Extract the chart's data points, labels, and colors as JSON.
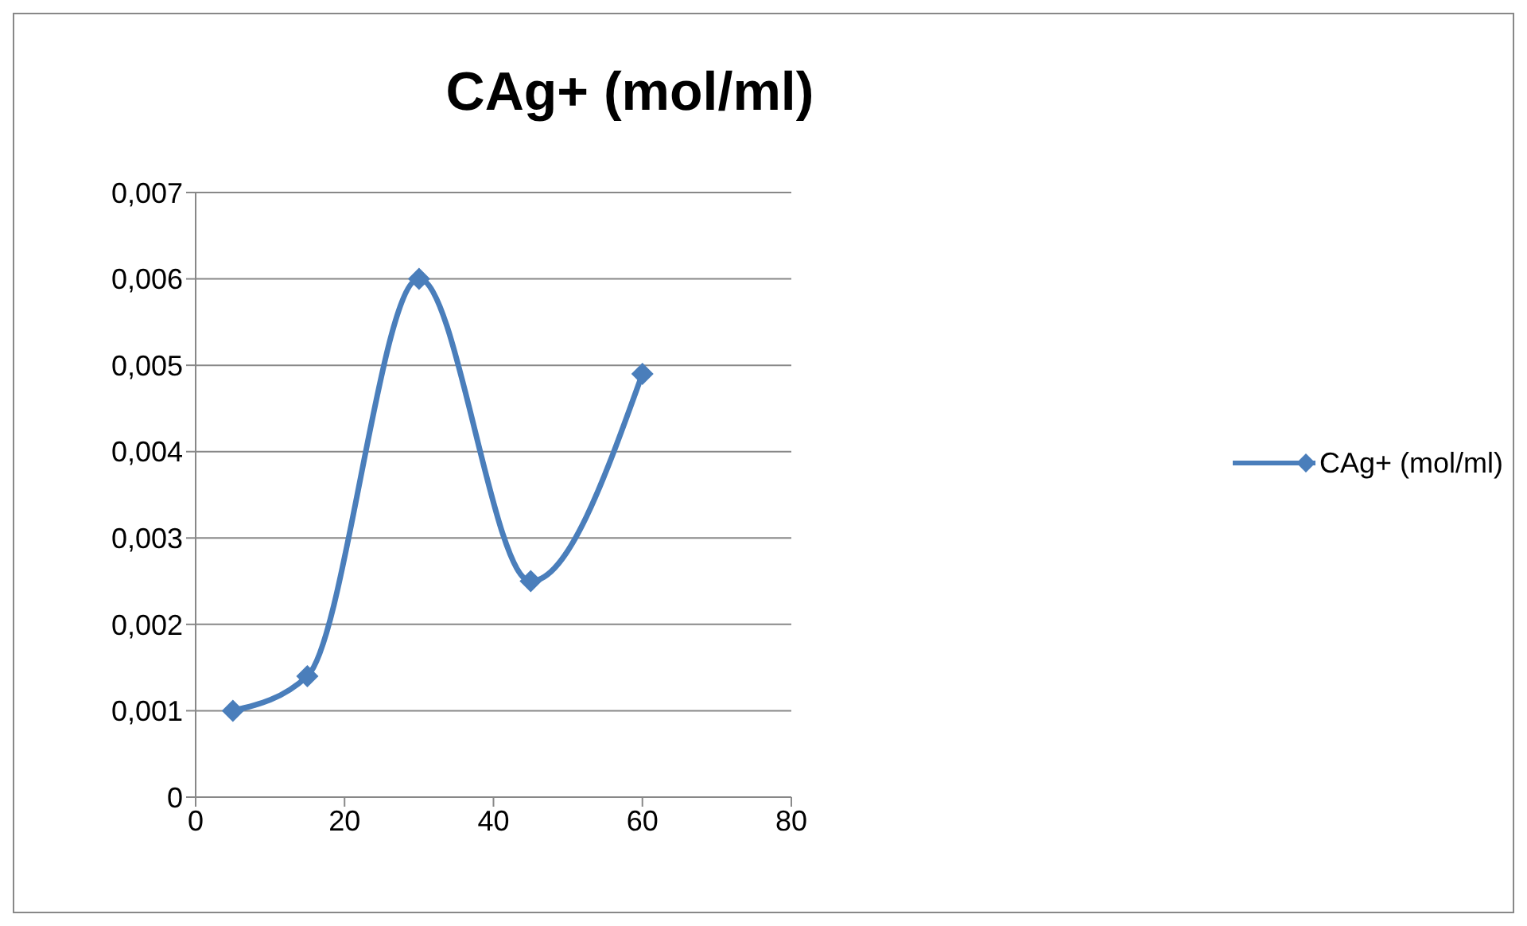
{
  "chart_data": {
    "type": "line",
    "title": "CAg+  (mol/ml)",
    "x": [
      5,
      15,
      30,
      45,
      60
    ],
    "series": [
      {
        "name": "CAg+  (mol/ml)",
        "color": "#4a7ebb",
        "values": [
          0.001,
          0.0014,
          0.006,
          0.0025,
          0.0049
        ]
      }
    ],
    "xlim": [
      0,
      80
    ],
    "xticks": [
      0,
      20,
      40,
      60,
      80
    ],
    "ylim": [
      0,
      0.007
    ],
    "yticks": [
      0,
      {
        "value": 0.001,
        "label": "0,001"
      },
      {
        "value": 0.002,
        "label": "0,002"
      },
      {
        "value": 0.003,
        "label": "0,003"
      },
      {
        "value": 0.004,
        "label": "0,004"
      },
      {
        "value": 0.005,
        "label": "0,005"
      },
      {
        "value": 0.006,
        "label": "0,006"
      },
      {
        "value": 0.007,
        "label": "0,007"
      }
    ],
    "grid": "y",
    "legend": "right",
    "marker": "diamond",
    "line_style": "solid"
  }
}
